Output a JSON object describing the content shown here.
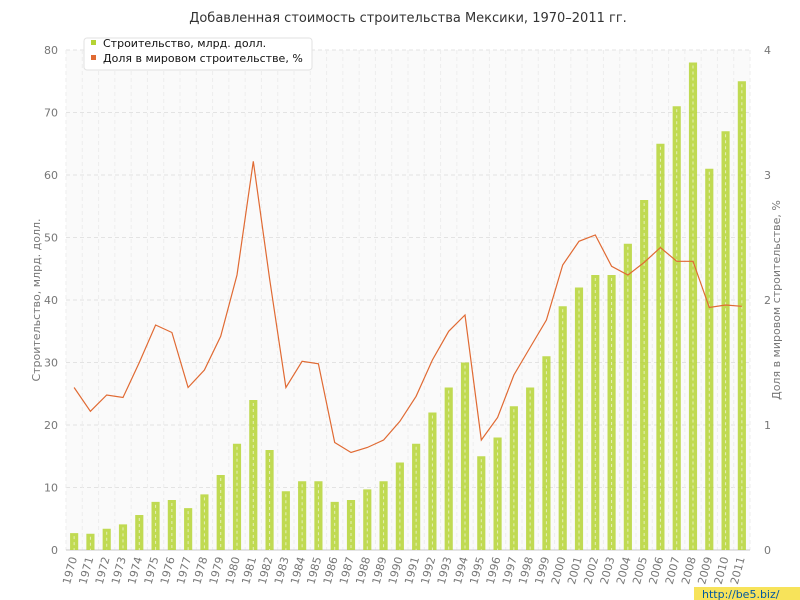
{
  "chart_data": {
    "type": "bar",
    "title": "Добавленная стоимость строительства Мексики, 1970–2011 гг.",
    "ylabel": "Строительство, млрд. долл.",
    "ylabel_right": "Доля в мировом строительстве, %",
    "ylim": [
      0,
      80
    ],
    "ylim_right": [
      0,
      4
    ],
    "yticks": [
      "0",
      "10",
      "20",
      "30",
      "40",
      "50",
      "60",
      "70",
      "80"
    ],
    "yticks_right": [
      "0",
      "1",
      "2",
      "3",
      "4"
    ],
    "categories": [
      "1970",
      "1971",
      "1972",
      "1973",
      "1974",
      "1975",
      "1976",
      "1977",
      "1978",
      "1979",
      "1980",
      "1981",
      "1982",
      "1983",
      "1984",
      "1985",
      "1986",
      "1987",
      "1988",
      "1989",
      "1990",
      "1991",
      "1992",
      "1993",
      "1994",
      "1995",
      "1996",
      "1997",
      "1998",
      "1999",
      "2000",
      "2001",
      "2002",
      "2003",
      "2004",
      "2005",
      "2006",
      "2007",
      "2008",
      "2009",
      "2010",
      "2011"
    ],
    "series": [
      {
        "name": "Строительство, млрд. долл.",
        "type": "bar",
        "axis": "left",
        "color": "#b5d334",
        "values": [
          2.7,
          2.6,
          3.4,
          4.1,
          5.6,
          7.7,
          8.0,
          6.7,
          8.9,
          12.0,
          17.0,
          24.0,
          16.0,
          9.4,
          11.0,
          11.0,
          7.7,
          8.0,
          9.7,
          11.0,
          14.0,
          17.0,
          22.0,
          26.0,
          30.0,
          15.0,
          18.0,
          23.0,
          26.0,
          31.0,
          39.0,
          42.0,
          44.0,
          44.0,
          49.0,
          56.0,
          65.0,
          71.0,
          78.0,
          61.0,
          67.0,
          75.0
        ]
      },
      {
        "name": "Доля в мировом строительстве, %",
        "type": "line",
        "axis": "right",
        "color": "#e06a33",
        "values": [
          1.3,
          1.11,
          1.24,
          1.22,
          1.5,
          1.8,
          1.74,
          1.3,
          1.44,
          1.71,
          2.2,
          3.11,
          2.17,
          1.3,
          1.51,
          1.49,
          0.86,
          0.78,
          0.82,
          0.88,
          1.03,
          1.23,
          1.52,
          1.75,
          1.88,
          0.88,
          1.06,
          1.4,
          1.62,
          1.84,
          2.28,
          2.47,
          2.52,
          2.27,
          2.2,
          2.3,
          2.42,
          2.31,
          2.31,
          1.94,
          1.96,
          1.95
        ]
      }
    ],
    "legend_position": "top-left",
    "grid": true
  },
  "watermark": "http://be5.biz/"
}
